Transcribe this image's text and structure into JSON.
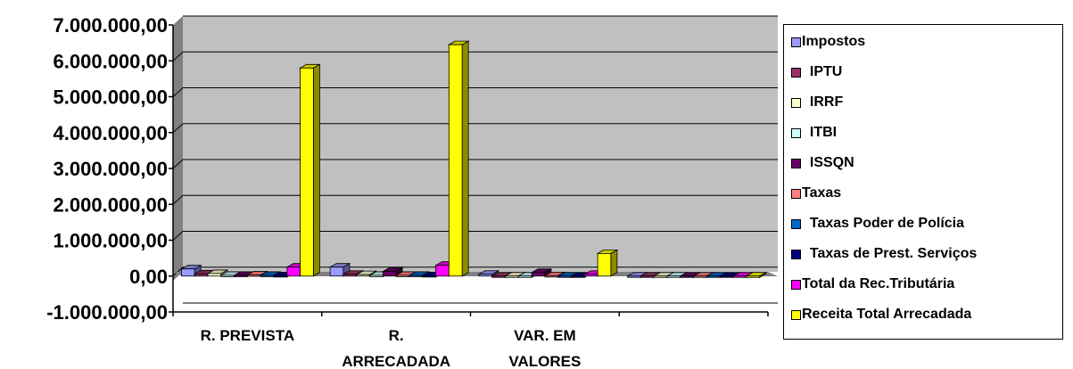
{
  "chart_data": {
    "type": "bar",
    "categories": [
      "R. PREVISTA",
      "R. ARRECADADA",
      "VAR. EM VALORES",
      ""
    ],
    "y_tick_labels": [
      "7.000.000,00",
      "6.000.000,00",
      "5.000.000,00",
      "4.000.000,00",
      "3.000.000,00",
      "2.000.000,00",
      "1.000.000,00",
      "0,00",
      "-1.000.000,00"
    ],
    "ylim": [
      -1000000,
      7000000
    ],
    "grid": true,
    "legend_position": "right",
    "plot_background": "#c0c0c0",
    "series": [
      {
        "name": "Impostos",
        "color": "#9999ff",
        "values": [
          200000,
          250000,
          50000,
          0
        ]
      },
      {
        "name": "IPTU",
        "color": "#993366",
        "values": [
          60000,
          50000,
          -30000,
          0
        ]
      },
      {
        "name": "IRRF",
        "color": "#ffffcc",
        "values": [
          70000,
          40000,
          -30000,
          0
        ]
      },
      {
        "name": "ITBI",
        "color": "#ccffff",
        "values": [
          20000,
          20000,
          0,
          0
        ]
      },
      {
        "name": "ISSQN",
        "color": "#660066",
        "values": [
          20000,
          130000,
          100000,
          0
        ]
      },
      {
        "name": "Taxas",
        "color": "#ff8080",
        "values": [
          30000,
          20000,
          10000,
          0
        ]
      },
      {
        "name": "Taxas Poder de Polícia",
        "color": "#0066cc",
        "values": [
          20000,
          20000,
          0,
          0
        ]
      },
      {
        "name": "Taxas de Prest. Serviços",
        "color": "#000080",
        "values": [
          10000,
          10000,
          0,
          0
        ]
      },
      {
        "name": "Total da Rec.Tributária",
        "color": "#ff00ff",
        "values": [
          250000,
          300000,
          50000,
          0
        ]
      },
      {
        "name": "Receita Total Arrecadada",
        "color": "#ffff00",
        "values": [
          5800000,
          6450000,
          630000,
          0
        ]
      }
    ],
    "legend_labels": [
      "Impostos",
      "  IPTU",
      "  IRRF",
      "  ITBI",
      "  ISSQN",
      "Taxas",
      "  Taxas Poder de Polícia",
      "  Taxas de Prest. Serviços",
      "Total da Rec.Tributária",
      "Receita Total Arrecadada"
    ]
  }
}
